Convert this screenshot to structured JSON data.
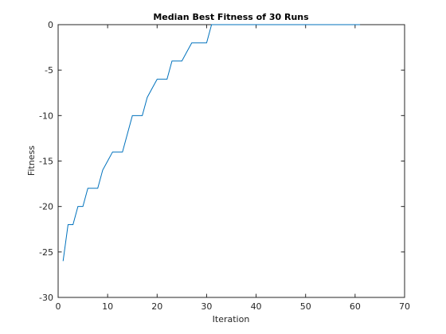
{
  "chart_data": {
    "type": "line",
    "title": "Median Best Fitness of 30 Runs",
    "xlabel": "Iteration",
    "ylabel": "Fitness",
    "xlim": [
      0,
      70
    ],
    "ylim": [
      -30,
      0
    ],
    "xticks": [
      0,
      10,
      20,
      30,
      40,
      50,
      60,
      70
    ],
    "yticks": [
      -30,
      -25,
      -20,
      -15,
      -10,
      -5,
      0
    ],
    "grid": false,
    "series_color": "#0072bd",
    "series": [
      {
        "x": [
          1,
          2,
          3,
          4,
          5,
          6,
          7,
          8,
          9,
          10,
          11,
          12,
          13,
          14,
          15,
          16,
          17,
          18,
          19,
          20,
          21,
          22,
          23,
          24,
          25,
          26,
          27,
          28,
          29,
          30,
          31,
          32,
          33,
          34,
          35,
          36,
          37,
          38,
          39,
          40,
          41,
          42,
          43,
          44,
          45,
          46,
          47,
          48,
          49,
          50,
          51,
          52,
          53,
          54,
          55,
          56,
          57,
          58,
          59,
          60,
          61
        ],
        "y": [
          -26,
          -22,
          -22,
          -20,
          -20,
          -18,
          -18,
          -18,
          -16,
          -15,
          -14,
          -14,
          -14,
          -12,
          -10,
          -10,
          -10,
          -8,
          -7,
          -6,
          -6,
          -6,
          -4,
          -4,
          -4,
          -3,
          -2,
          -2,
          -2,
          -2,
          0,
          0,
          0,
          0,
          0,
          0,
          0,
          0,
          0,
          0,
          0,
          0,
          0,
          0,
          0,
          0,
          0,
          0,
          0,
          0,
          0,
          0,
          0,
          0,
          0,
          0,
          0,
          0,
          0,
          0,
          0
        ]
      }
    ]
  }
}
